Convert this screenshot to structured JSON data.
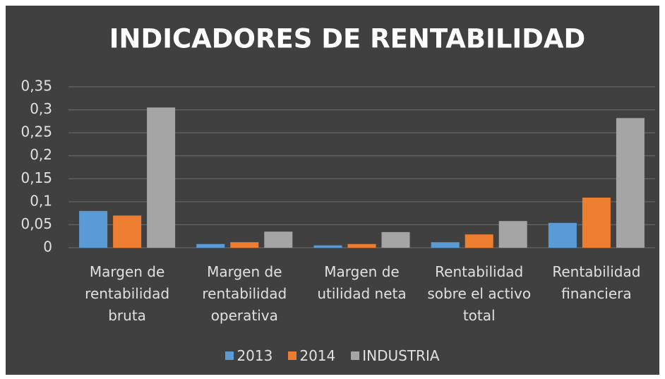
{
  "chart_data": {
    "type": "bar",
    "title": "INDICADORES DE RENTABILIDAD",
    "categories": [
      "Margen de rentabilidad bruta",
      "Margen de rentabilidad operativa",
      "Margen de utilidad neta",
      "Rentabilidad sobre el activo total",
      "Rentabilidad financiera"
    ],
    "series": [
      {
        "name": "2013",
        "color": "#5b9bd5",
        "values": [
          0.08,
          0.008,
          0.005,
          0.012,
          0.054
        ]
      },
      {
        "name": "2014",
        "color": "#ed7d31",
        "values": [
          0.07,
          0.012,
          0.008,
          0.029,
          0.109
        ]
      },
      {
        "name": "INDUSTRIA",
        "color": "#a5a5a5",
        "values": [
          0.305,
          0.035,
          0.034,
          0.058,
          0.282
        ]
      }
    ],
    "ylim": [
      0,
      0.35
    ],
    "yticks": [
      0,
      {
        "value": 0.05,
        "label": "0,05"
      },
      {
        "value": 0.1,
        "label": "0,1"
      },
      {
        "value": 0.15,
        "label": "0,15"
      },
      {
        "value": 0.2,
        "label": "0,2"
      },
      {
        "value": 0.25,
        "label": "0,25"
      },
      {
        "value": 0.3,
        "label": "0,3"
      },
      {
        "value": 0.35,
        "label": "0,35"
      }
    ],
    "grid": true,
    "legend": "bottom"
  }
}
